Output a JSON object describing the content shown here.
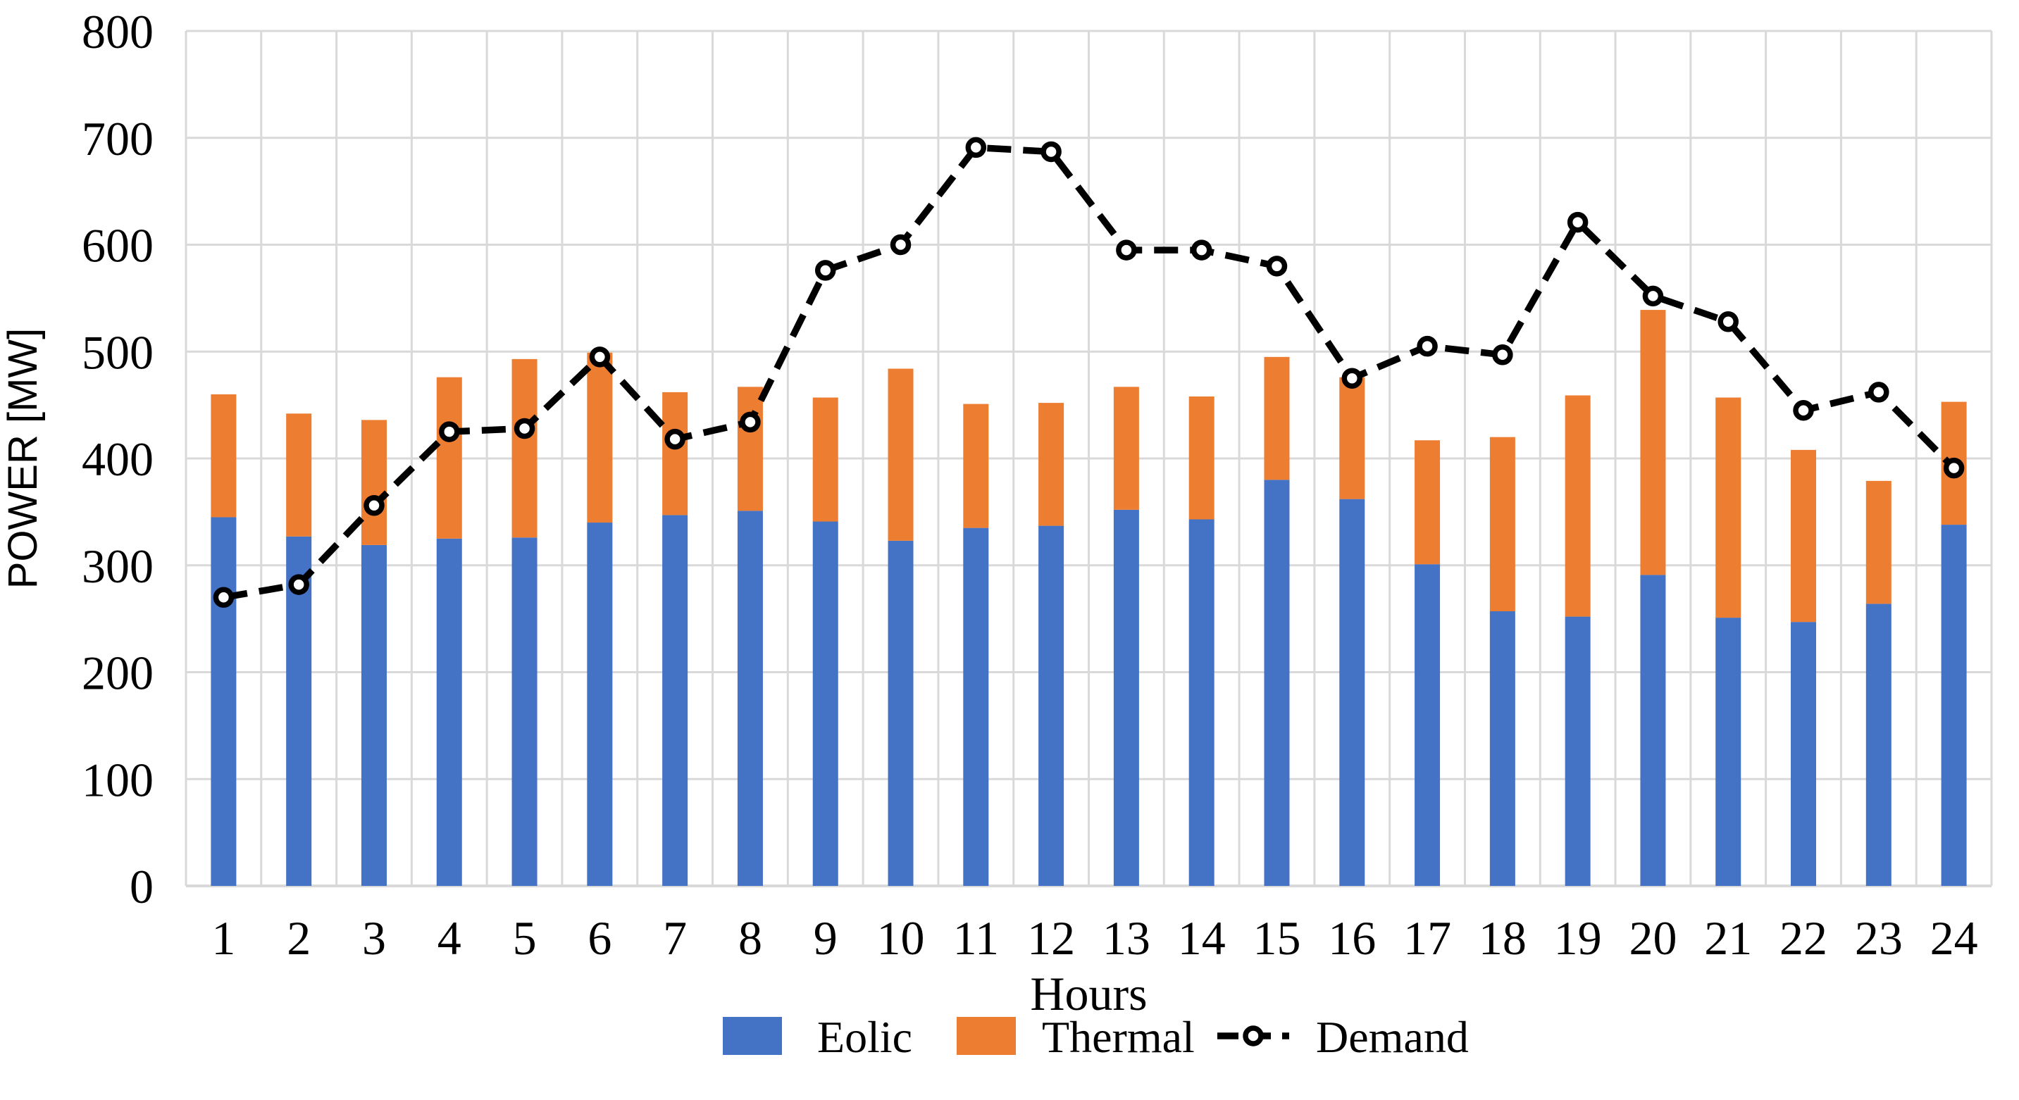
{
  "chart_data": {
    "type": "bar",
    "subtype": "stacked-bars-with-dashed-line-overlay",
    "title": "",
    "xlabel": "Hours",
    "ylabel": "POWER [MW]",
    "x": [
      1,
      2,
      3,
      4,
      5,
      6,
      7,
      8,
      9,
      10,
      11,
      12,
      13,
      14,
      15,
      16,
      17,
      18,
      19,
      20,
      21,
      22,
      23,
      24
    ],
    "ylim": [
      0,
      800
    ],
    "yticks": [
      0,
      100,
      200,
      300,
      400,
      500,
      600,
      700,
      800
    ],
    "grid": true,
    "legend_position": "bottom",
    "series": [
      {
        "name": "Eolic",
        "type": "bar",
        "stacked": true,
        "color": "#4472C4",
        "values": [
          345,
          327,
          319,
          325,
          326,
          340,
          347,
          351,
          341,
          323,
          335,
          337,
          352,
          343,
          380,
          362,
          301,
          257,
          252,
          291,
          251,
          247,
          264,
          338
        ]
      },
      {
        "name": "Thermal",
        "type": "bar",
        "stacked": true,
        "color": "#ED7D31",
        "values": [
          115,
          115,
          117,
          151,
          167,
          159,
          115,
          116,
          116,
          161,
          116,
          115,
          115,
          115,
          115,
          114,
          116,
          163,
          207,
          248,
          206,
          161,
          115,
          115
        ]
      },
      {
        "name": "Demand",
        "type": "line",
        "style": "dashed",
        "marker": "open-circle",
        "color": "#000000",
        "values": [
          270,
          282,
          356,
          425,
          428,
          495,
          418,
          434,
          576,
          600,
          691,
          687,
          595,
          595,
          580,
          475,
          505,
          497,
          621,
          552,
          528,
          445,
          462,
          391
        ]
      }
    ]
  },
  "colors": {
    "eolic": "#4472C4",
    "thermal": "#ED7D31",
    "demand": "#000000",
    "gridline": "#D9D9D9",
    "background": "#FFFFFF",
    "text": "#000000"
  }
}
